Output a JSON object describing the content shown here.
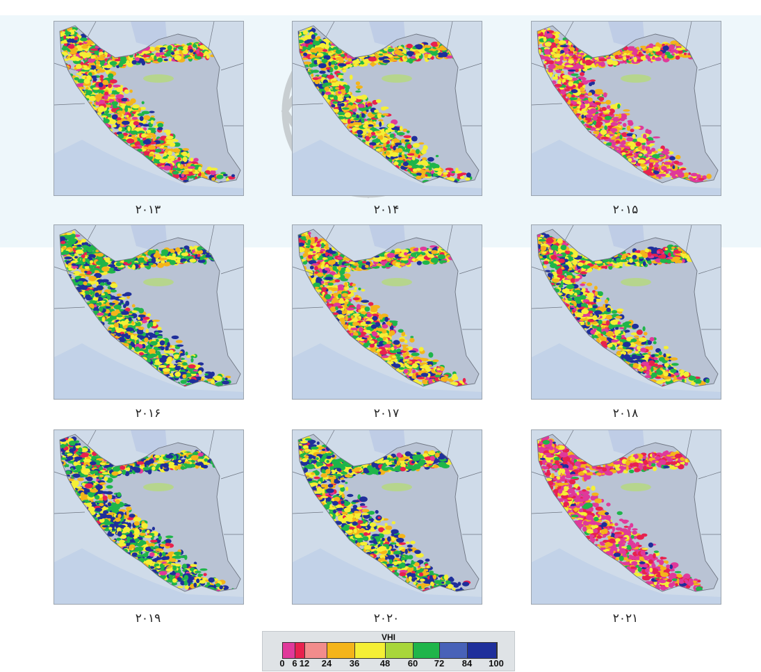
{
  "panels": [
    {
      "year": "۲۰۱۳",
      "mix": [
        0.1,
        0.12,
        0.2,
        0.28,
        0.22,
        0.08
      ]
    },
    {
      "year": "۲۰۱۴",
      "mix": [
        0.06,
        0.08,
        0.22,
        0.26,
        0.26,
        0.12
      ]
    },
    {
      "year": "۲۰۱۵",
      "mix": [
        0.3,
        0.16,
        0.22,
        0.18,
        0.1,
        0.04
      ]
    },
    {
      "year": "۲۰۱۶",
      "mix": [
        0.03,
        0.05,
        0.16,
        0.22,
        0.3,
        0.24
      ]
    },
    {
      "year": "۲۰۱۷",
      "mix": [
        0.1,
        0.12,
        0.24,
        0.24,
        0.2,
        0.1
      ]
    },
    {
      "year": "۲۰۱۸",
      "mix": [
        0.08,
        0.1,
        0.2,
        0.22,
        0.24,
        0.16
      ]
    },
    {
      "year": "۲۰۱۹",
      "mix": [
        0.02,
        0.04,
        0.14,
        0.22,
        0.3,
        0.28
      ]
    },
    {
      "year": "۲۰۲۰",
      "mix": [
        0.02,
        0.05,
        0.16,
        0.24,
        0.28,
        0.25
      ]
    },
    {
      "year": "۲۰۲۱",
      "mix": [
        0.46,
        0.18,
        0.16,
        0.12,
        0.06,
        0.02
      ]
    }
  ],
  "legend": {
    "title": "VHI",
    "ticks": [
      "0",
      "6",
      "12",
      "24",
      "36",
      "48",
      "60",
      "72",
      "84",
      "100"
    ],
    "classes": [
      {
        "from": 0,
        "to": 6,
        "color": "#e0399a"
      },
      {
        "from": 6,
        "to": 12,
        "color": "#e8214e"
      },
      {
        "from": 12,
        "to": 24,
        "color": "#f28c8c"
      },
      {
        "from": 24,
        "to": 36,
        "color": "#f4b41a"
      },
      {
        "from": 36,
        "to": 48,
        "color": "#f5ef35"
      },
      {
        "from": 48,
        "to": 60,
        "color": "#a8d63a"
      },
      {
        "from": 60,
        "to": 72,
        "color": "#1fb54a"
      },
      {
        "from": 72,
        "to": 84,
        "color": "#4862b8"
      },
      {
        "from": 84,
        "to": 100,
        "color": "#1f2f9b"
      }
    ]
  },
  "colors": {
    "land": "#b9c3d4",
    "sea": "#cfdbe9",
    "border": "#6d7480",
    "vegetation_mix_order": [
      "#e0399a",
      "#e8214e",
      "#f4b41a",
      "#f5ef35",
      "#1fb54a",
      "#1f2f9b"
    ]
  }
}
